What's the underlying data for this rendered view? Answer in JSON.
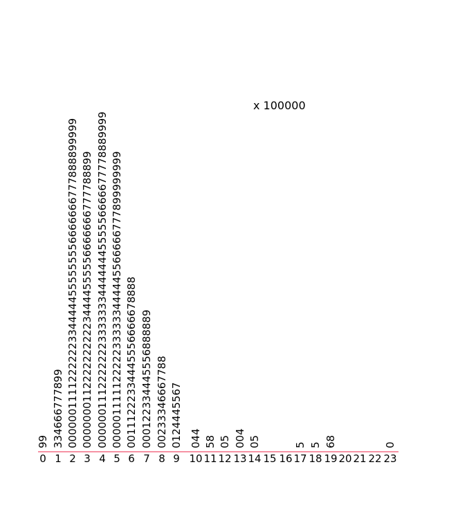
{
  "chart_data": {
    "type": "stem-and-leaf",
    "title": "",
    "scale_note": "x 100000",
    "stems": [
      "0",
      "1",
      "2",
      "3",
      "4",
      "5",
      "6",
      "7",
      "8",
      "9",
      "10",
      "11",
      "12",
      "13",
      "14",
      "15",
      "16",
      "17",
      "18",
      "19",
      "20",
      "21",
      "22",
      "23"
    ],
    "leaves": [
      "99",
      "334666777899",
      "00000011112222223344444555555556666666777888899999",
      "000000011222222222234444555556666666777788899",
      "000000111222222233333334444444555556666677778889999",
      "000001111122222333333444445566666777899999999",
      "00111222334445556666678888",
      "000122334445556888889",
      "00233346667788",
      "0124445567",
      "044",
      "58",
      "05",
      "004",
      "05",
      "",
      "",
      "5",
      "5",
      "68",
      "",
      "",
      "",
      "0"
    ],
    "baseline_color": "#f0506e"
  }
}
